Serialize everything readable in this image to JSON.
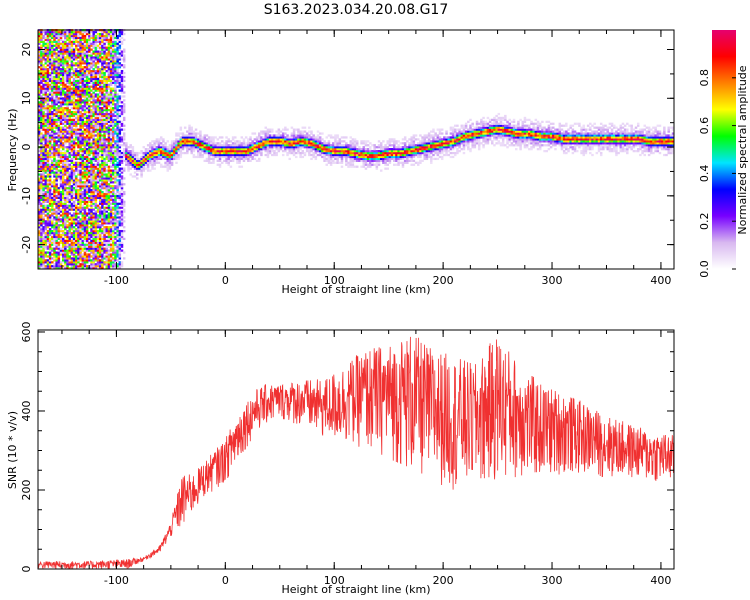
{
  "title": "S163.2023.034.20.08.G17",
  "chart_data": [
    {
      "type": "heatmap",
      "title": "S163.2023.034.20.08.G17",
      "xlabel": "Height of straight line (km)",
      "ylabel": "Frequency (Hz)",
      "xlim": [
        -172,
        412
      ],
      "ylim": [
        -25,
        24
      ],
      "x_ticks": [
        "-100",
        "0",
        "100",
        "200",
        "300",
        "400"
      ],
      "y_ticks": [
        "-20",
        "-10",
        "0",
        "10",
        "20"
      ],
      "colorbar": {
        "label": "Normalized spectral amplitude",
        "range": [
          0,
          1
        ],
        "ticks": [
          "0.0",
          "0.2",
          "0.4",
          "0.6",
          "0.8"
        ],
        "colors": [
          "#ffffff",
          "#d8b8f0",
          "#7700ff",
          "#0000ff",
          "#00e5ff",
          "#00ff00",
          "#ffff00",
          "#ff8000",
          "#ff0000",
          "#e6006e"
        ]
      },
      "ridge": {
        "x": [
          -100,
          -90,
          -80,
          -70,
          -60,
          -50,
          -40,
          -30,
          -20,
          -10,
          0,
          10,
          20,
          30,
          40,
          50,
          60,
          70,
          80,
          90,
          100,
          110,
          120,
          130,
          140,
          150,
          160,
          170,
          180,
          190,
          200,
          210,
          220,
          230,
          240,
          250,
          260,
          270,
          280,
          290,
          300,
          310,
          320,
          330,
          340,
          350,
          360,
          370,
          380,
          390,
          400,
          410
        ],
        "y": [
          -1,
          -2,
          -4,
          -2,
          -1,
          -2,
          1,
          1,
          0,
          -1,
          -1,
          -1,
          -1,
          0,
          1,
          1,
          0.5,
          1,
          0.5,
          -0.5,
          -1,
          -1,
          -1.5,
          -2,
          -2,
          -1.5,
          -1.5,
          -1,
          -0.5,
          0,
          0.5,
          1,
          2,
          2.5,
          3,
          3.5,
          3,
          2.5,
          2.5,
          2,
          2,
          1.5,
          1.5,
          1.5,
          1.5,
          1.5,
          1.5,
          1.5,
          1.5,
          1,
          1,
          1
        ]
      },
      "noise_region_x": [
        -172,
        -100
      ]
    },
    {
      "type": "line",
      "xlabel": "Height of straight line (km)",
      "ylabel": "SNR (10 * v/v)",
      "xlim": [
        -172,
        412
      ],
      "ylim": [
        0,
        605
      ],
      "x_ticks": [
        "-100",
        "0",
        "100",
        "200",
        "300",
        "400"
      ],
      "y_ticks": [
        "0",
        "200",
        "400",
        "600"
      ],
      "color": "#f03030",
      "envelope": {
        "x": [
          -172,
          -120,
          -90,
          -75,
          -60,
          -50,
          -40,
          -30,
          -20,
          -10,
          0,
          10,
          20,
          30,
          40,
          50,
          70,
          90,
          110,
          130,
          150,
          170,
          190,
          210,
          230,
          250,
          270,
          290,
          310,
          330,
          350,
          370,
          390,
          412
        ],
        "low": [
          0,
          0,
          0,
          20,
          40,
          80,
          100,
          140,
          180,
          200,
          220,
          260,
          310,
          350,
          370,
          380,
          360,
          330,
          320,
          300,
          280,
          240,
          220,
          200,
          210,
          220,
          230,
          230,
          240,
          240,
          230,
          230,
          220,
          220
        ],
        "high": [
          20,
          20,
          25,
          30,
          60,
          120,
          240,
          240,
          270,
          300,
          330,
          390,
          430,
          460,
          470,
          470,
          480,
          480,
          520,
          560,
          570,
          600,
          560,
          540,
          520,
          600,
          520,
          470,
          450,
          420,
          390,
          370,
          350,
          340
        ]
      }
    }
  ]
}
